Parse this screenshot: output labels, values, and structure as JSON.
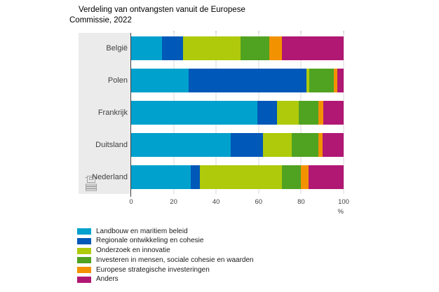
{
  "title": "Verdeling van ontvangsten vanuit de Europese Commissie, 2022",
  "chart_data": {
    "type": "bar",
    "orientation": "horizontal",
    "stacked": true,
    "title": "Verdeling van ontvangsten vanuit de Europese Commissie, 2022",
    "categories": [
      "België",
      "Polen",
      "Frankrijk",
      "Duitsland",
      "Nederland"
    ],
    "series": [
      {
        "name": "Landbouw en maritiem beleid",
        "color": "#00a1cd",
        "values": [
          14.5,
          27,
          59.5,
          47,
          28
        ]
      },
      {
        "name": "Regionale ontwikkeling en cohesie",
        "color": "#0058b8",
        "values": [
          10,
          55.5,
          9,
          15,
          4.5
        ]
      },
      {
        "name": "Onderzoek en innovatie",
        "color": "#afca0b",
        "values": [
          27,
          1.5,
          10.5,
          13.5,
          38.5
        ]
      },
      {
        "name": "Investeren in mensen, sociale cohesie en waarden",
        "color": "#50a221",
        "values": [
          13.5,
          11.5,
          9,
          12.5,
          9
        ]
      },
      {
        "name": "Europese strategische investeringen",
        "color": "#f39200",
        "values": [
          6,
          1.5,
          2.5,
          2,
          3.5
        ]
      },
      {
        "name": "Anders",
        "color": "#b01873",
        "values": [
          29,
          3,
          9.5,
          10,
          16.5
        ]
      }
    ],
    "x_axis": {
      "range": [
        0,
        100
      ],
      "ticks": [
        0,
        20,
        40,
        60,
        80,
        100
      ],
      "unit": "%"
    },
    "grid": true,
    "legend_position": "bottom-left"
  },
  "colors": {
    "label_panel": "#ebebeb",
    "gridline": "#d9d9d9",
    "axis_line": "#404040",
    "tick_text": "#404040",
    "icon_gray": "#9e9e9e"
  },
  "icons": {
    "source_logo": "cbs-logo-icon"
  }
}
